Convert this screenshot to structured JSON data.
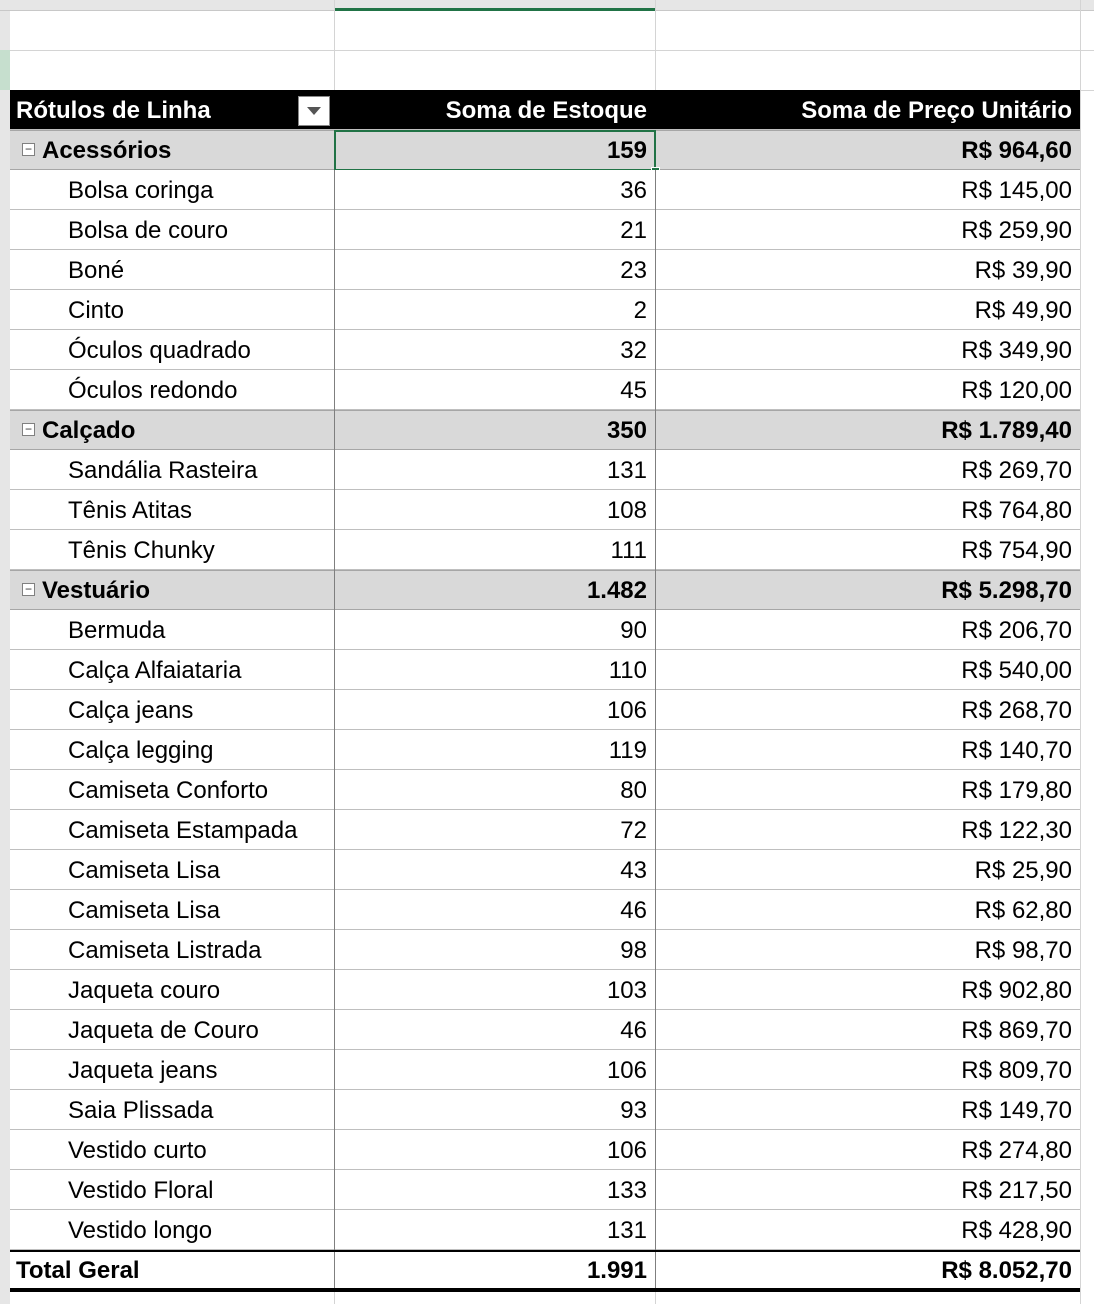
{
  "table": {
    "headers": [
      "Rótulos de Linha",
      "Soma de Estoque",
      "Soma de Preço Unitário"
    ],
    "groups": [
      {
        "label": "Acessórios",
        "estoque": "159",
        "preco": "R$ 964,60",
        "items": [
          [
            "Bolsa coringa",
            "36",
            "R$ 145,00"
          ],
          [
            "Bolsa de couro",
            "21",
            "R$ 259,90"
          ],
          [
            "Boné",
            "23",
            "R$ 39,90"
          ],
          [
            "Cinto",
            "2",
            "R$ 49,90"
          ],
          [
            "Óculos quadrado",
            "32",
            "R$ 349,90"
          ],
          [
            "Óculos redondo",
            "45",
            "R$ 120,00"
          ]
        ]
      },
      {
        "label": "Calçado",
        "estoque": "350",
        "preco": "R$ 1.789,40",
        "items": [
          [
            "Sandália Rasteira",
            "131",
            "R$ 269,70"
          ],
          [
            "Tênis Atitas",
            "108",
            "R$ 764,80"
          ],
          [
            "Tênis Chunky",
            "111",
            "R$ 754,90"
          ]
        ]
      },
      {
        "label": "Vestuário",
        "estoque": "1.482",
        "preco": "R$ 5.298,70",
        "items": [
          [
            "Bermuda",
            "90",
            "R$ 206,70"
          ],
          [
            "Calça Alfaiataria",
            "110",
            "R$ 540,00"
          ],
          [
            "Calça jeans",
            "106",
            "R$ 268,70"
          ],
          [
            "Calça legging",
            "119",
            "R$ 140,70"
          ],
          [
            "Camiseta Conforto",
            "80",
            "R$ 179,80"
          ],
          [
            "Camiseta Estampada",
            "72",
            "R$ 122,30"
          ],
          [
            "Camiseta Lisa",
            "43",
            "R$ 25,90"
          ],
          [
            "Camiseta Lisa",
            "46",
            "R$ 62,80"
          ],
          [
            "Camiseta Listrada",
            "98",
            "R$ 98,70"
          ],
          [
            "Jaqueta couro",
            "103",
            "R$ 902,80"
          ],
          [
            "Jaqueta de Couro",
            "46",
            "R$ 869,70"
          ],
          [
            "Jaqueta jeans",
            "106",
            "R$ 809,70"
          ],
          [
            "Saia Plissada",
            "93",
            "R$ 149,70"
          ],
          [
            "Vestido curto",
            "106",
            "R$ 274,80"
          ],
          [
            "Vestido Floral",
            "133",
            "R$ 217,50"
          ],
          [
            "Vestido longo",
            "131",
            "R$ 428,90"
          ]
        ]
      }
    ],
    "total": [
      "Total Geral",
      "1.991",
      "R$ 8.052,70"
    ]
  }
}
